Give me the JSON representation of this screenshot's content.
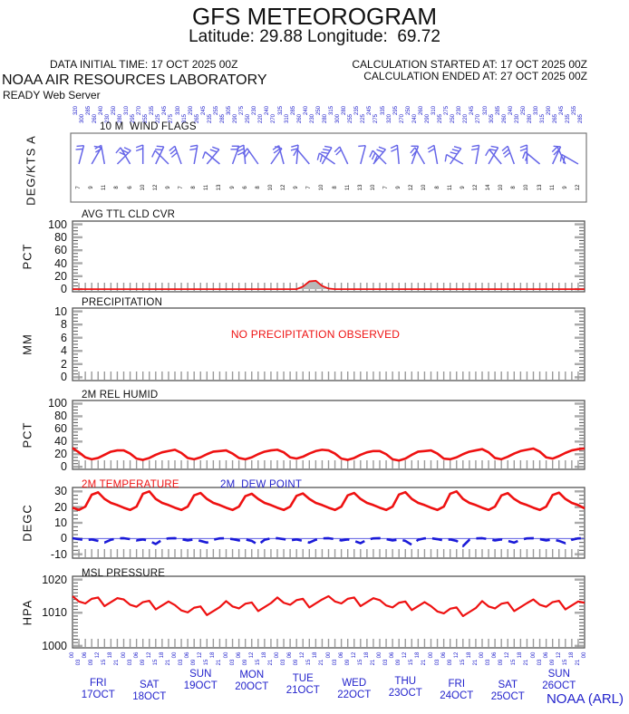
{
  "colors": {
    "red": "#ee1111",
    "blue_text": "#2323cc",
    "blue_line": "#1a1ad8",
    "barb_blue": "#6565e8",
    "zero_line_blue": "#4444dd",
    "gray_fill": "#b8b8b8",
    "tick_major": "#aaaaaa",
    "tick_minor": "#555555",
    "time_tick": "#999999",
    "border": "#555555",
    "black": "#111111"
  },
  "header": {
    "title": "GFS METEOROGRAM",
    "subtitle": "Latitude: 29.88 Longitude:  69.72",
    "data_initial": "DATA INITIAL TIME: 17 OCT 2025 00Z",
    "organization": "NOAA AIR RESOURCES LABORATORY",
    "server": "READY Web Server",
    "calc_started": "CALCULATION STARTED AT: 17 OCT 2025 00Z",
    "calc_ended": "CALCULATION ENDED AT: 27 OCT 2025 00Z"
  },
  "footer": {
    "credit": "NOAA (ARL)"
  },
  "time_axis": {
    "start": "17 OCT 2025 00Z",
    "end": "27 OCT 2025 00Z",
    "hours_step": 3,
    "hour_label_pattern": [
      "00",
      "03",
      "06",
      "09",
      "12",
      "15",
      "18",
      "21"
    ],
    "days": [
      {
        "name": "FRI",
        "date": "17OCT",
        "dy": 10
      },
      {
        "name": "SAT",
        "date": "18OCT",
        "dy": 12
      },
      {
        "name": "SUN",
        "date": "19OCT",
        "dy": 0
      },
      {
        "name": "MON",
        "date": "20OCT",
        "dy": 1
      },
      {
        "name": "TUE",
        "date": "21OCT",
        "dy": 5
      },
      {
        "name": "WED",
        "date": "22OCT",
        "dy": 10
      },
      {
        "name": "THU",
        "date": "23OCT",
        "dy": 8
      },
      {
        "name": "FRI",
        "date": "24OCT",
        "dy": 11
      },
      {
        "name": "SAT",
        "date": "25OCT",
        "dy": 12
      },
      {
        "name": "SUN",
        "date": "26OCT",
        "dy": 0
      }
    ]
  },
  "chart_data": [
    {
      "id": "wind",
      "type": "wind-barbs",
      "title": "10 M  WIND FLAGS",
      "ylabel": "DEG/KTS A",
      "barb_hours_start": 3,
      "barb_hours_step": 6,
      "barb_angles_deg": [
        75,
        60,
        100,
        45,
        120,
        90,
        65,
        135,
        110,
        80,
        50,
        140,
        70,
        95,
        125,
        55,
        105,
        85,
        130,
        60,
        145,
        115,
        75,
        50,
        135,
        95,
        70,
        120,
        100,
        55,
        150,
        80,
        60,
        130,
        110,
        90,
        140,
        65,
        115,
        150
      ],
      "barb_ticks": [
        2,
        1,
        2,
        3,
        1,
        2,
        2,
        1,
        3,
        2,
        2,
        1,
        2,
        3,
        2,
        1,
        2,
        2,
        1,
        3,
        2,
        2,
        1,
        2,
        3,
        2,
        1,
        2,
        2,
        3,
        1,
        2,
        2,
        1,
        3,
        2,
        2,
        1,
        2,
        2
      ],
      "direction_labels_deg": [
        320,
        300,
        285,
        260,
        240,
        230,
        250,
        280,
        310,
        295,
        270,
        255,
        235,
        225,
        245,
        275,
        330,
        315,
        290,
        265,
        245,
        235,
        255,
        285,
        305,
        290,
        275,
        250,
        230,
        220,
        240,
        270,
        325,
        310,
        285,
        260,
        240,
        230,
        250,
        280,
        315,
        300,
        280,
        255,
        235,
        225,
        245,
        275,
        335,
        320,
        295,
        270,
        250,
        240,
        260,
        290,
        310,
        295,
        275,
        250,
        230,
        220,
        245,
        270,
        320,
        305,
        285,
        260,
        240,
        230,
        250,
        280,
        330,
        315,
        290,
        265,
        245,
        235,
        255,
        285
      ],
      "speed_labels_kts": [
        7,
        9,
        11,
        8,
        6,
        10,
        12,
        9,
        7,
        8,
        11,
        13,
        9,
        6,
        8,
        10,
        12,
        9,
        7,
        10,
        8,
        11,
        13,
        10,
        7,
        9,
        12,
        10,
        8,
        11,
        9,
        12,
        14,
        10,
        8,
        10,
        13,
        11,
        9,
        12
      ]
    },
    {
      "id": "cloud",
      "type": "area",
      "title": "AVG TTL CLD CVR",
      "ylabel": "PCT",
      "ylim": [
        0,
        100
      ],
      "yticks": [
        0,
        20,
        40,
        60,
        80,
        100
      ],
      "x_hours_start": 0,
      "x_hours_step": 3,
      "values": [
        0,
        0,
        0,
        0,
        0,
        0,
        0,
        0,
        0,
        0,
        0,
        0,
        0,
        0,
        0,
        0,
        0,
        0,
        0,
        0,
        0,
        0,
        0,
        0,
        0,
        0,
        0,
        0,
        0,
        0,
        0,
        0,
        0,
        0,
        0,
        0,
        4,
        12,
        13,
        5,
        1,
        0,
        0,
        0,
        0,
        0,
        0,
        0,
        0,
        0,
        0,
        0,
        0,
        0,
        0,
        0,
        0,
        0,
        0,
        0,
        0,
        0,
        0,
        0,
        0,
        0,
        0,
        0,
        0,
        0,
        0,
        0,
        0,
        0,
        0,
        0,
        0,
        0,
        0,
        0,
        0
      ]
    },
    {
      "id": "precip",
      "type": "bar",
      "title": "PRECIPITATION",
      "ylabel": "MM",
      "ylim": [
        0,
        10
      ],
      "yticks": [
        0,
        2,
        4,
        6,
        8,
        10
      ],
      "note": "NO PRECIPITATION OBSERVED",
      "values": []
    },
    {
      "id": "humid",
      "type": "line",
      "title": "2M REL HUMID",
      "ylabel": "PCT",
      "ylim": [
        0,
        100
      ],
      "yticks": [
        0,
        20,
        40,
        60,
        80,
        100
      ],
      "x_hours_start": 0,
      "x_hours_step": 3,
      "values": [
        30,
        23,
        15,
        12,
        14,
        19,
        24,
        26,
        26,
        21,
        13,
        11,
        14,
        19,
        23,
        25,
        27,
        22,
        14,
        12,
        15,
        20,
        24,
        25,
        26,
        21,
        14,
        12,
        15,
        20,
        24,
        26,
        27,
        23,
        15,
        13,
        16,
        21,
        25,
        27,
        26,
        21,
        13,
        11,
        14,
        19,
        23,
        25,
        25,
        20,
        12,
        10,
        13,
        19,
        24,
        25,
        26,
        21,
        13,
        12,
        15,
        20,
        24,
        26,
        28,
        23,
        14,
        12,
        16,
        21,
        25,
        27,
        29,
        24,
        15,
        13,
        17,
        22,
        26,
        28,
        29
      ]
    },
    {
      "id": "temp",
      "type": "line",
      "ylabel": "DEGC",
      "ylim": [
        -10,
        30
      ],
      "yticks": [
        -10,
        0,
        10,
        20,
        30
      ],
      "x_hours_start": 0,
      "x_hours_step": 3,
      "series": [
        {
          "name": "2M TEMPERATURE",
          "style": "solid",
          "values": [
            19.6,
            18.2,
            20.3,
            27.9,
            29.4,
            25.2,
            22.7,
            21.3,
            19.6,
            18.2,
            20.3,
            28.5,
            30.0,
            25.2,
            22.7,
            21.3,
            19.6,
            18.2,
            20.3,
            27.5,
            29.0,
            25.2,
            22.7,
            21.3,
            19.6,
            18.2,
            20.3,
            27.0,
            28.5,
            25.2,
            22.7,
            21.3,
            19.6,
            18.2,
            20.3,
            27.2,
            28.7,
            25.2,
            22.7,
            21.3,
            19.6,
            18.2,
            20.3,
            27.5,
            29.0,
            25.2,
            22.7,
            21.3,
            19.6,
            18.2,
            20.3,
            28.0,
            29.5,
            25.2,
            22.7,
            21.3,
            19.6,
            18.2,
            20.3,
            28.5,
            30.0,
            25.2,
            22.7,
            21.3,
            19.6,
            18.2,
            20.3,
            27.4,
            28.9,
            25.2,
            22.7,
            21.3,
            19.6,
            18.2,
            20.3,
            27.7,
            29.2,
            25.2,
            22.7,
            21.3,
            19.2
          ]
        },
        {
          "name": "2M  DEW POINT",
          "style": "dashed",
          "values": [
            0.2,
            -0.4,
            -1.2,
            -0.6,
            -1.5,
            -2.6,
            -0.8,
            0.1,
            0.2,
            -0.4,
            -1.2,
            -0.6,
            -1.5,
            -3.5,
            -0.8,
            0.1,
            0.2,
            -0.4,
            -1.2,
            -0.6,
            -1.5,
            -2.6,
            -0.8,
            0.1,
            0.2,
            -0.4,
            -1.2,
            -0.6,
            -1.5,
            -4.0,
            -0.8,
            0.1,
            0.2,
            -0.4,
            -1.2,
            -0.6,
            -1.5,
            -2.6,
            -0.8,
            0.1,
            0.2,
            -0.4,
            -1.2,
            -0.6,
            -1.5,
            -3.0,
            -0.8,
            0.1,
            0.2,
            -0.4,
            -1.2,
            -0.6,
            -1.5,
            -4.0,
            -0.8,
            0.1,
            0.2,
            -0.4,
            -1.2,
            -0.6,
            -1.5,
            -4.8,
            -0.8,
            0.1,
            0.2,
            -0.4,
            -1.2,
            -0.6,
            -1.5,
            -2.6,
            -0.8,
            0.1,
            0.2,
            -0.4,
            -1.2,
            -0.6,
            -1.5,
            -3.0,
            -0.8,
            0.1,
            0.3
          ]
        }
      ]
    },
    {
      "id": "press",
      "type": "line",
      "title": "MSL PRESSURE",
      "ylabel": "HPA",
      "ylim": [
        1000,
        1020
      ],
      "yticks": [
        1000,
        1010,
        1020
      ],
      "x_hours_start": 0,
      "x_hours_step": 3,
      "values": [
        1015.0,
        1013.4,
        1012.8,
        1014.2,
        1014.6,
        1012.0,
        1013.2,
        1014.4,
        1014.0,
        1012.4,
        1011.8,
        1013.2,
        1013.6,
        1011.0,
        1012.2,
        1013.4,
        1012.3,
        1010.7,
        1010.1,
        1011.5,
        1011.9,
        1009.3,
        1010.5,
        1011.7,
        1013.5,
        1011.9,
        1011.3,
        1012.7,
        1013.1,
        1010.5,
        1011.7,
        1012.9,
        1014.6,
        1013.0,
        1012.4,
        1013.8,
        1014.2,
        1011.6,
        1012.8,
        1014.0,
        1015.0,
        1013.4,
        1012.8,
        1014.2,
        1014.6,
        1012.0,
        1013.2,
        1014.4,
        1013.8,
        1012.2,
        1011.6,
        1013.0,
        1013.4,
        1010.8,
        1012.0,
        1013.2,
        1012.0,
        1010.4,
        1009.8,
        1011.2,
        1011.6,
        1009.0,
        1010.2,
        1011.4,
        1013.5,
        1011.9,
        1011.3,
        1012.7,
        1013.1,
        1010.5,
        1011.7,
        1012.9,
        1014.0,
        1012.4,
        1011.8,
        1013.2,
        1013.6,
        1011.0,
        1012.2,
        1013.4,
        1013.0
      ]
    }
  ]
}
